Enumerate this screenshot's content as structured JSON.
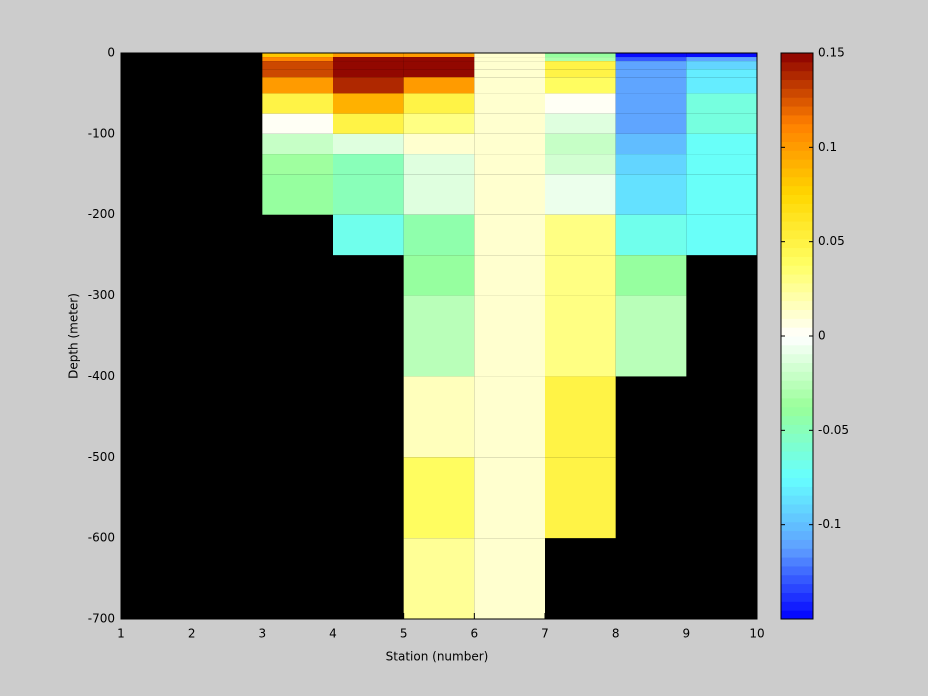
{
  "chart_data": {
    "type": "heatmap",
    "xlabel": "Station (number)",
    "ylabel": "Depth (meter)",
    "x_edges": [
      1,
      2,
      3,
      4,
      5,
      6,
      7,
      8,
      9,
      10
    ],
    "y_edges": [
      0,
      -5,
      -10,
      -20,
      -30,
      -50,
      -75,
      -100,
      -125,
      -150,
      -200,
      -250,
      -300,
      -400,
      -500,
      -600,
      -700
    ],
    "values": [
      [
        null,
        null,
        0.08,
        0.1,
        0.1,
        0.01,
        -0.04,
        -0.15,
        -0.15
      ],
      [
        null,
        null,
        0.11,
        0.15,
        0.15,
        0.01,
        -0.03,
        -0.13,
        -0.11
      ],
      [
        null,
        null,
        0.13,
        0.15,
        0.15,
        0.01,
        0.05,
        -0.11,
        -0.09
      ],
      [
        null,
        null,
        0.13,
        0.15,
        0.15,
        0.01,
        0.05,
        -0.11,
        -0.08
      ],
      [
        null,
        null,
        0.1,
        0.14,
        0.1,
        0.01,
        0.04,
        -0.11,
        -0.08
      ],
      [
        null,
        null,
        0.05,
        0.09,
        0.05,
        0.01,
        0.0,
        -0.11,
        -0.065
      ],
      [
        null,
        null,
        0.0,
        0.05,
        0.03,
        0.01,
        -0.01,
        -0.11,
        -0.065
      ],
      [
        null,
        null,
        -0.02,
        -0.01,
        0.01,
        0.01,
        -0.02,
        -0.1,
        -0.075
      ],
      [
        null,
        null,
        -0.035,
        -0.05,
        -0.01,
        0.01,
        -0.015,
        -0.09,
        -0.075
      ],
      [
        null,
        null,
        -0.04,
        -0.05,
        -0.01,
        0.01,
        -0.005,
        -0.085,
        -0.075
      ],
      [
        null,
        null,
        null,
        -0.07,
        -0.045,
        0.01,
        0.03,
        -0.07,
        -0.075
      ],
      [
        null,
        null,
        null,
        null,
        -0.04,
        0.01,
        0.03,
        -0.04,
        null
      ],
      [
        null,
        null,
        null,
        null,
        -0.025,
        0.01,
        0.03,
        -0.025,
        null
      ],
      [
        null,
        null,
        null,
        null,
        0.015,
        0.01,
        0.05,
        null,
        null
      ],
      [
        null,
        null,
        null,
        null,
        0.04,
        0.01,
        0.05,
        null,
        null
      ],
      [
        null,
        null,
        null,
        null,
        0.025,
        0.01,
        null,
        null,
        null
      ]
    ],
    "missing_color": "#000000",
    "colormap": [
      "#0000ff",
      "#5f9fff",
      "#66ffff",
      "#99ff99",
      "#ffffff",
      "#ffff66",
      "#ffd700",
      "#ff8000",
      "#8b0000"
    ],
    "colormap_levels": 64,
    "clim": [
      -0.15,
      0.15
    ],
    "cticks": [
      -0.1,
      -0.05,
      0,
      0.05,
      0.1,
      0.15
    ],
    "xlim": [
      1,
      10
    ],
    "xticks": [
      1,
      2,
      3,
      4,
      5,
      6,
      7,
      8,
      9,
      10
    ],
    "ylim": [
      -700,
      0
    ],
    "yticks": [
      -700,
      -600,
      -500,
      -400,
      -300,
      -200,
      -100,
      0
    ]
  }
}
